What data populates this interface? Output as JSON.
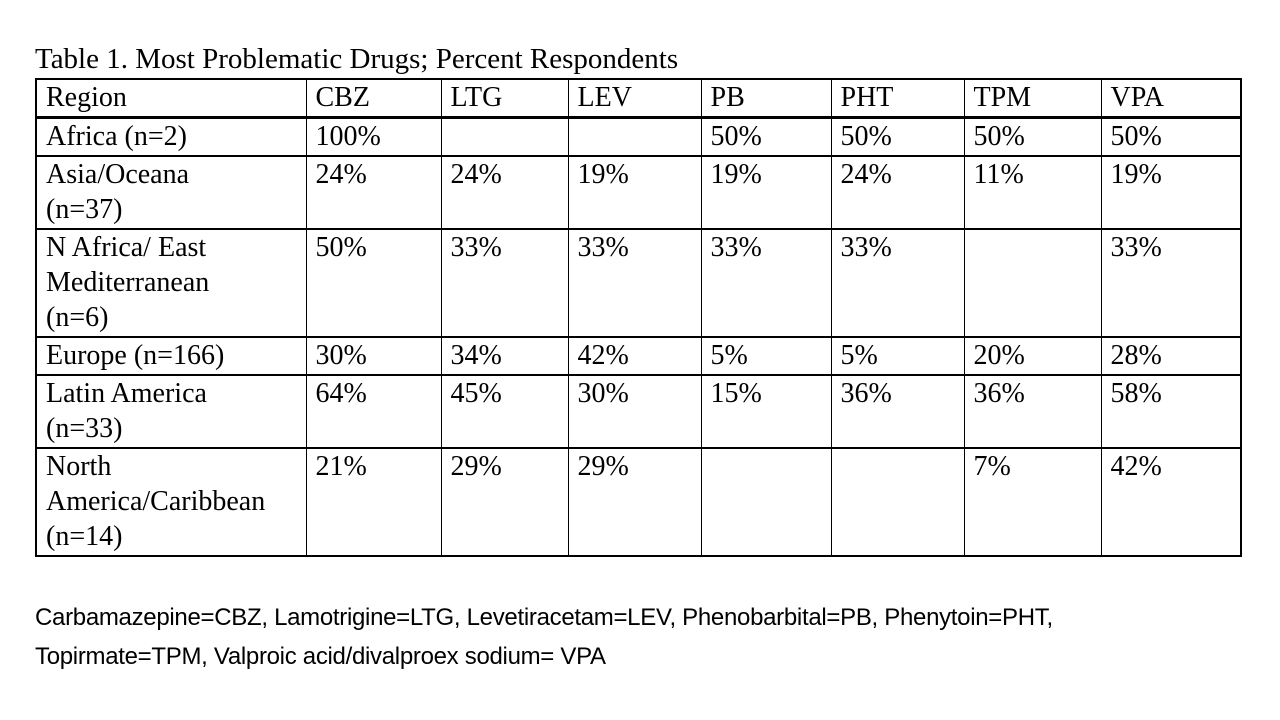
{
  "title": "Table 1. Most Problematic Drugs; Percent Respondents",
  "colors": {
    "text": "#000000",
    "background": "#ffffff",
    "border": "#000000"
  },
  "table": {
    "columns": [
      "Region",
      "CBZ",
      "LTG",
      "LEV",
      "PB",
      "PHT",
      "TPM",
      "VPA"
    ],
    "rows": [
      {
        "region": "Africa (n=2)",
        "values": [
          "100%",
          "",
          "",
          "50%",
          "50%",
          "50%",
          "50%"
        ]
      },
      {
        "region": "Asia/Oceana\n(n=37)",
        "values": [
          "24%",
          "24%",
          "19%",
          "19%",
          "24%",
          "11%",
          "19%"
        ]
      },
      {
        "region": "N Africa/ East\nMediterranean\n(n=6)",
        "values": [
          "50%",
          "33%",
          "33%",
          "33%",
          "33%",
          "",
          "33%"
        ]
      },
      {
        "region": "Europe (n=166)",
        "values": [
          "30%",
          "34%",
          "42%",
          "5%",
          "5%",
          "20%",
          "28%"
        ]
      },
      {
        "region": "Latin America\n(n=33)",
        "values": [
          "64%",
          "45%",
          "30%",
          "15%",
          "36%",
          "36%",
          "58%"
        ]
      },
      {
        "region": "North\nAmerica/Caribbean\n(n=14)",
        "values": [
          "21%",
          "29%",
          "29%",
          "",
          "",
          "7%",
          "42%"
        ]
      }
    ]
  },
  "footnote": "Carbamazepine=CBZ, Lamotrigine=LTG, Levetiracetam=LEV, Phenobarbital=PB, Phenytoin=PHT,\nTopirmate=TPM, Valproic acid/divalproex sodium= VPA"
}
